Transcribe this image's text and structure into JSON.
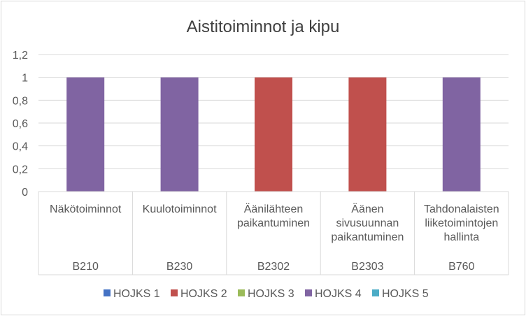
{
  "chart_data": {
    "type": "bar",
    "title": "Aistitoiminnot ja kipu",
    "categories": [
      {
        "name": [
          "Näkötoiminnot"
        ],
        "code": "B210"
      },
      {
        "name": [
          "Kuulotoiminnot"
        ],
        "code": "B230"
      },
      {
        "name": [
          "Äänilähteen",
          "paikantuminen"
        ],
        "code": "B2302"
      },
      {
        "name": [
          "Äänen",
          "sivusuunnan",
          "paikantuminen"
        ],
        "code": "B2303"
      },
      {
        "name": [
          "Tahdonalaisten",
          "liiketoimintojen",
          "hallinta"
        ],
        "code": "B760"
      }
    ],
    "series": [
      {
        "name": "HOJKS 1",
        "color": "#4472c4",
        "values": [
          null,
          null,
          null,
          null,
          null
        ]
      },
      {
        "name": "HOJKS 2",
        "color": "#c0504d",
        "values": [
          null,
          null,
          1,
          1,
          null
        ]
      },
      {
        "name": "HOJKS 3",
        "color": "#9bbb59",
        "values": [
          null,
          null,
          null,
          null,
          null
        ]
      },
      {
        "name": "HOJKS 4",
        "color": "#8064a2",
        "values": [
          1,
          1,
          null,
          null,
          1
        ]
      },
      {
        "name": "HOJKS 5",
        "color": "#4bacc6",
        "values": [
          null,
          null,
          null,
          null,
          null
        ]
      }
    ],
    "yticks": [
      "0",
      "0,2",
      "0,4",
      "0,6",
      "0,8",
      "1",
      "1,2"
    ],
    "ylim": [
      0,
      1.2
    ],
    "grid": true,
    "legend": "bottom"
  }
}
